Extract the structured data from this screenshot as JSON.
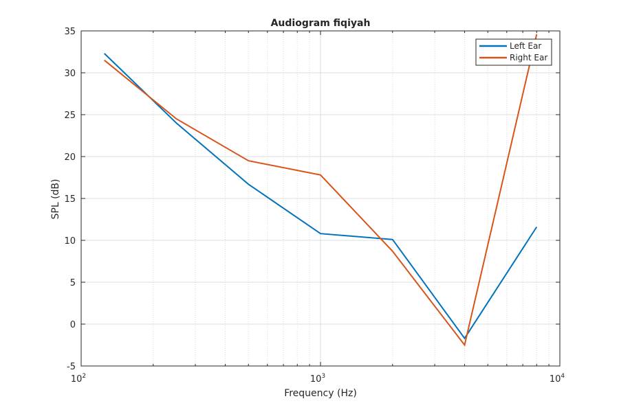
{
  "chart_data": {
    "type": "line",
    "title": "Audiogram fiqiyah",
    "xlabel": "Frequency (Hz)",
    "ylabel": "SPL (dB)",
    "xscale": "log",
    "xlim": [
      100,
      10000
    ],
    "ylim": [
      -5,
      35
    ],
    "xticks": [
      {
        "base": "10",
        "exp": "2",
        "value": 100
      },
      {
        "base": "10",
        "exp": "3",
        "value": 1000
      },
      {
        "base": "10",
        "exp": "4",
        "value": 10000
      }
    ],
    "yticks": [
      "-5",
      "0",
      "5",
      "10",
      "15",
      "20",
      "25",
      "30",
      "35"
    ],
    "grid": true,
    "minor_grid": true,
    "legend_position": "top-right",
    "x": [
      125,
      250,
      500,
      1000,
      2000,
      4000,
      8000
    ],
    "series": [
      {
        "name": "Left Ear",
        "color": "#0072BD",
        "values": [
          32.3,
          24.0,
          16.7,
          10.8,
          10.1,
          -1.7,
          11.6
        ]
      },
      {
        "name": "Right Ear",
        "color": "#D95319",
        "values": [
          31.5,
          24.5,
          19.5,
          17.8,
          8.7,
          -2.5,
          34.6
        ]
      }
    ]
  }
}
